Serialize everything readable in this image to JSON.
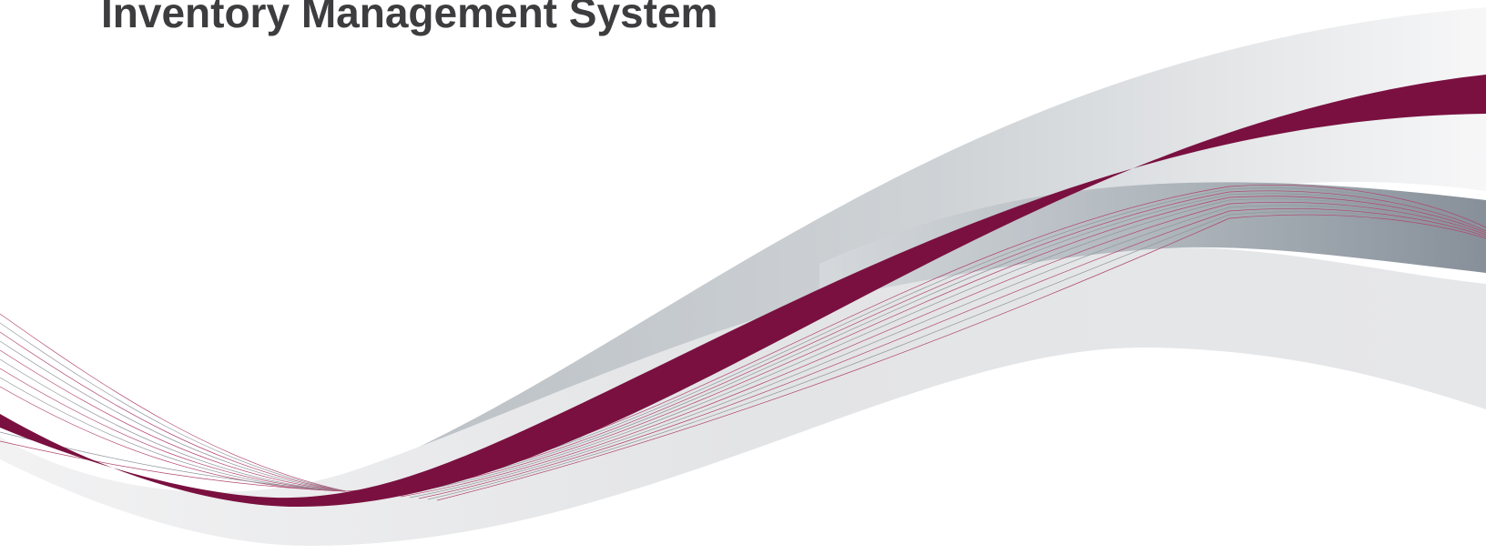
{
  "header": {
    "title": "Inventory Management System"
  },
  "colors": {
    "title_text": "#3d3d3f",
    "brand_maroon": "#7a1040",
    "silver_light": "#e6e7e9",
    "silver_mid": "#c5cacd",
    "silver_dark": "#8a939b",
    "thin_line_maroon": "#b0476e",
    "thin_line_grey": "#8f969c"
  }
}
